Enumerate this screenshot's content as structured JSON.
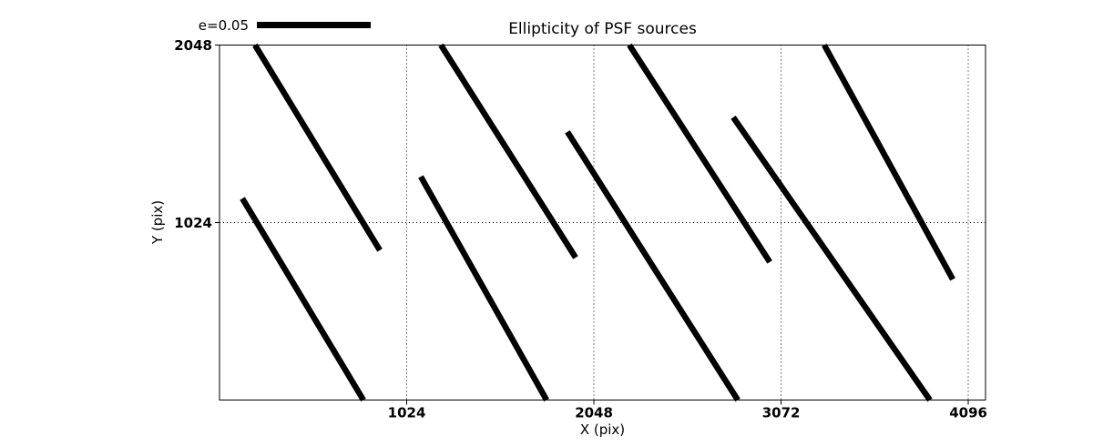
{
  "figure": {
    "title": "Ellipticity of PSF sources",
    "xlabel": "X (pix)",
    "ylabel": "Y (pix)",
    "background_color": "#ffffff",
    "data_color": "#000000"
  },
  "legend": {
    "label": "e=0.05"
  },
  "chart_data": {
    "type": "line",
    "title": "Ellipticity of PSF sources",
    "xlabel": "X (pix)",
    "ylabel": "Y (pix)",
    "xlim": [
      0,
      4190
    ],
    "ylim": [
      0,
      2048
    ],
    "x_ticks": [
      1024,
      2048,
      3072,
      4096
    ],
    "y_ticks": [
      1024,
      2048
    ],
    "grid": "dotted",
    "legend": {
      "label": "e=0.05",
      "position": "above-top-left",
      "frame": false
    },
    "series": [
      {
        "name": "psf-ellipticity-whiskers",
        "description": "Thick black whisker segments, endpoints in detector pixel coords; segments reaching y=0 or y=2048 are clipped by the axes",
        "segments": [
          {
            "x1": 194,
            "y1": 2048,
            "x2": 877,
            "y2": 864
          },
          {
            "x1": 125,
            "y1": 1163,
            "x2": 787,
            "y2": 0
          },
          {
            "x1": 1211,
            "y1": 2048,
            "x2": 1948,
            "y2": 822
          },
          {
            "x1": 1101,
            "y1": 1289,
            "x2": 1789,
            "y2": 0
          },
          {
            "x1": 1903,
            "y1": 1547,
            "x2": 2835,
            "y2": 0
          },
          {
            "x1": 2242,
            "y1": 2048,
            "x2": 3010,
            "y2": 796
          },
          {
            "x1": 2810,
            "y1": 1631,
            "x2": 3886,
            "y2": 0
          },
          {
            "x1": 3308,
            "y1": 2048,
            "x2": 4011,
            "y2": 696
          }
        ]
      }
    ]
  }
}
